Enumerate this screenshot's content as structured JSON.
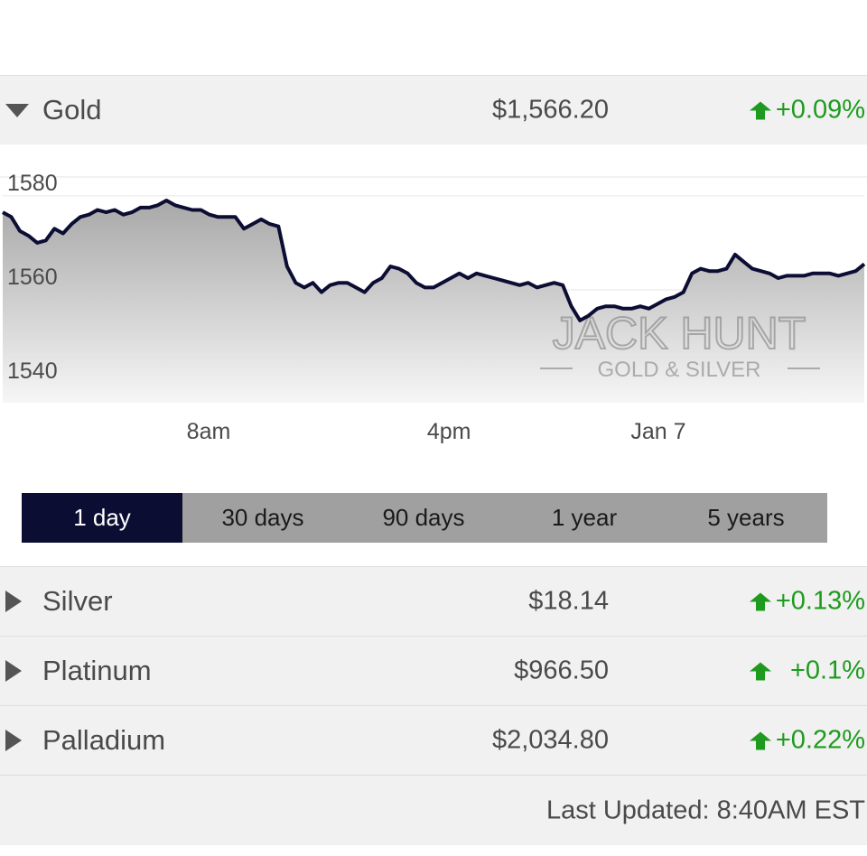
{
  "metals": [
    {
      "name": "Gold",
      "price": "$1,566.20",
      "change": "+0.09%",
      "expanded": true
    },
    {
      "name": "Silver",
      "price": "$18.14",
      "change": "+0.13%",
      "expanded": false
    },
    {
      "name": "Platinum",
      "price": "$966.50",
      "change": "+0.1%",
      "expanded": false
    },
    {
      "name": "Palladium",
      "price": "$2,034.80",
      "change": "+0.22%",
      "expanded": false
    }
  ],
  "colors": {
    "up": "#1e9b1e",
    "line": "#0b0d33",
    "active_tab": "#0b0d33",
    "tab_bar": "#a0a0a0"
  },
  "periods": {
    "items": [
      "1 day",
      "30 days",
      "90 days",
      "1 year",
      "5 years"
    ],
    "selected": "1 day"
  },
  "watermark": {
    "brand": "JACK HUNT",
    "sub": "GOLD & SILVER"
  },
  "footer": {
    "last_updated": "Last Updated: 8:40AM EST"
  },
  "chart_data": {
    "type": "area",
    "ytick_labels": [
      "1580",
      "1560",
      "1540"
    ],
    "xtick_labels": [
      "8am",
      "4pm",
      "Jan 7"
    ],
    "ylim": [
      1536,
      1584
    ],
    "xlim": [
      0,
      100
    ],
    "xticks": [
      23.9,
      51.8,
      76.1
    ],
    "yticks": [
      1580,
      1560,
      1540
    ],
    "grid": true,
    "series": [
      {
        "x": [
          0,
          1,
          2,
          3,
          4,
          5,
          6,
          7,
          8,
          9,
          10,
          11,
          12,
          13,
          14,
          15,
          16,
          17,
          18,
          19,
          20,
          21,
          22,
          23,
          24,
          25,
          26,
          27,
          28,
          29,
          30,
          31,
          32,
          33,
          34,
          35,
          36,
          37,
          38,
          39,
          40,
          41,
          42,
          43,
          44,
          45,
          46,
          47,
          48,
          49,
          50,
          51,
          52,
          53,
          54,
          55,
          56,
          57,
          58,
          59,
          60,
          61,
          62,
          63,
          64,
          65,
          66,
          67,
          68,
          69,
          70,
          71,
          72,
          73,
          74,
          75,
          76,
          77,
          78,
          79,
          80,
          81,
          82,
          83,
          84,
          85,
          86,
          87,
          88,
          89,
          90,
          91,
          92,
          93,
          94,
          95,
          96,
          97,
          98,
          99,
          100
        ],
        "values": [
          1576.5,
          1575.5,
          1572.5,
          1571.5,
          1570.0,
          1570.5,
          1573.0,
          1572.0,
          1574.0,
          1575.5,
          1576.0,
          1577.0,
          1576.5,
          1577.0,
          1576.0,
          1576.5,
          1577.5,
          1577.5,
          1578.0,
          1579.0,
          1578.0,
          1577.5,
          1577.0,
          1577.0,
          1576.0,
          1575.5,
          1575.5,
          1575.5,
          1573.0,
          1574.0,
          1575.0,
          1574.0,
          1573.5,
          1565.0,
          1561.5,
          1560.5,
          1561.5,
          1559.5,
          1561.0,
          1561.5,
          1561.5,
          1560.5,
          1559.5,
          1561.5,
          1562.5,
          1565.0,
          1564.5,
          1563.5,
          1561.5,
          1560.5,
          1560.5,
          1561.5,
          1562.5,
          1563.5,
          1562.5,
          1563.5,
          1563.0,
          1562.5,
          1562.0,
          1561.5,
          1561.0,
          1561.5,
          1560.5,
          1561.0,
          1561.5,
          1561.0,
          1556.5,
          1553.5,
          1554.5,
          1556.0,
          1556.5,
          1556.5,
          1556.0,
          1556.0,
          1556.5,
          1556.0,
          1557.0,
          1558.0,
          1558.5,
          1559.5,
          1563.5,
          1564.5,
          1564.0,
          1564.0,
          1564.5,
          1567.5,
          1566.0,
          1564.5,
          1564.0,
          1563.5,
          1562.5,
          1563.0,
          1563.0,
          1563.0,
          1563.5,
          1563.5,
          1563.5,
          1563.0,
          1563.5,
          1564.0,
          1565.5
        ]
      }
    ]
  }
}
